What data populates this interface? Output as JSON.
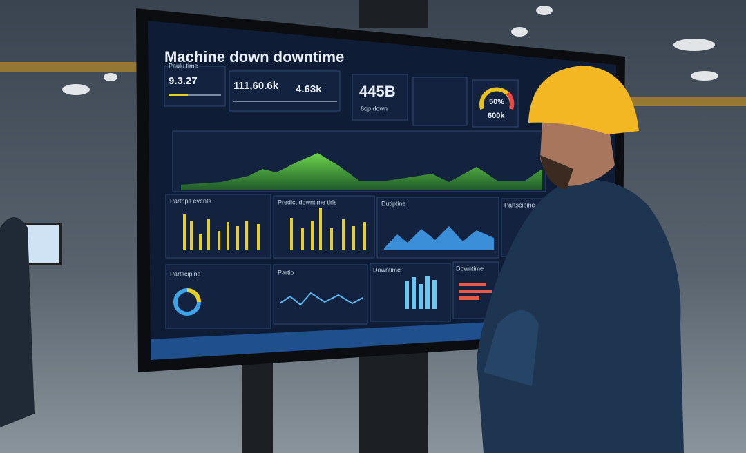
{
  "screen": {
    "title": "Machine down downtime",
    "kpis": [
      {
        "label": "Paulu time",
        "value": "9.3.27"
      },
      {
        "value": "111,60.6k"
      },
      {
        "value": "4.63k"
      },
      {
        "value": "445B",
        "label": "6op down"
      }
    ],
    "gauge": {
      "top": "50%",
      "bottom": "600k"
    },
    "panels": [
      "Partnps events",
      "Predict downtime tirls",
      "Dutiptine",
      "Partscipine",
      "Partio",
      "Downtime",
      "Downtime"
    ]
  }
}
